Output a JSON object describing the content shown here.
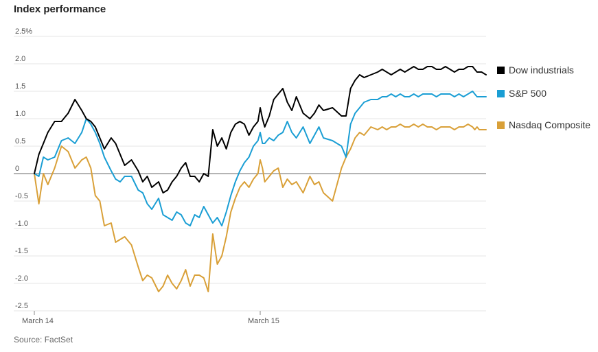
{
  "title": "Index performance",
  "source": "Source: FactSet",
  "colors": {
    "dow": "#000000",
    "sp": "#1a9ed4",
    "nasdaq": "#d9a038",
    "grid": "#e6e6e6",
    "zero": "#888888"
  },
  "chart_data": {
    "type": "line",
    "title": "Index performance",
    "ylim": [
      -2.5,
      2.5
    ],
    "xlim": [
      0,
      1
    ],
    "y_ticks": [
      {
        "value": 2.5,
        "label": "2.5%"
      },
      {
        "value": 2.0,
        "label": "2.0"
      },
      {
        "value": 1.5,
        "label": "1.5"
      },
      {
        "value": 1.0,
        "label": "1.0"
      },
      {
        "value": 0.5,
        "label": "0.5"
      },
      {
        "value": 0,
        "label": "0"
      },
      {
        "value": -0.5,
        "label": "-0.5"
      },
      {
        "value": -1.0,
        "label": "-1.0"
      },
      {
        "value": -1.5,
        "label": "-1.5"
      },
      {
        "value": -2.0,
        "label": "-2.0"
      },
      {
        "value": -2.5,
        "label": "-2.5"
      }
    ],
    "x_ticks": [
      {
        "value": 0,
        "label": "March 14"
      },
      {
        "value": 0.5,
        "label": "March 15"
      }
    ],
    "legend": "right",
    "grid": true,
    "series": [
      {
        "name": "Dow industrials",
        "color": "#000000",
        "x": [
          0,
          0.01,
          0.02,
          0.03,
          0.045,
          0.06,
          0.075,
          0.09,
          0.105,
          0.115,
          0.125,
          0.135,
          0.145,
          0.155,
          0.17,
          0.18,
          0.19,
          0.2,
          0.215,
          0.23,
          0.24,
          0.25,
          0.26,
          0.275,
          0.285,
          0.295,
          0.305,
          0.315,
          0.325,
          0.335,
          0.345,
          0.355,
          0.365,
          0.375,
          0.385,
          0.395,
          0.405,
          0.415,
          0.425,
          0.435,
          0.445,
          0.455,
          0.465,
          0.475,
          0.485,
          0.495,
          0.5,
          0.505,
          0.51,
          0.52,
          0.53,
          0.54,
          0.55,
          0.56,
          0.57,
          0.58,
          0.595,
          0.61,
          0.62,
          0.63,
          0.64,
          0.66,
          0.68,
          0.69,
          0.7,
          0.71,
          0.72,
          0.73,
          0.745,
          0.76,
          0.77,
          0.78,
          0.79,
          0.8,
          0.81,
          0.82,
          0.83,
          0.84,
          0.85,
          0.86,
          0.87,
          0.88,
          0.89,
          0.9,
          0.91,
          0.92,
          0.93,
          0.94,
          0.95,
          0.96,
          0.97,
          0.975,
          0.98,
          0.985,
          0.99,
          1.0
        ],
        "y": [
          0.0,
          0.35,
          0.55,
          0.75,
          0.95,
          0.95,
          1.1,
          1.35,
          1.15,
          1.0,
          0.95,
          0.85,
          0.65,
          0.45,
          0.65,
          0.55,
          0.35,
          0.15,
          0.25,
          0.05,
          -0.15,
          -0.05,
          -0.25,
          -0.15,
          -0.35,
          -0.3,
          -0.15,
          -0.05,
          0.1,
          0.2,
          -0.05,
          -0.05,
          -0.15,
          0.0,
          -0.05,
          0.8,
          0.5,
          0.65,
          0.45,
          0.75,
          0.9,
          0.95,
          0.9,
          0.7,
          0.85,
          0.95,
          1.2,
          1.0,
          0.85,
          1.05,
          1.35,
          1.45,
          1.55,
          1.3,
          1.15,
          1.4,
          1.1,
          1.0,
          1.1,
          1.25,
          1.15,
          1.2,
          1.05,
          1.05,
          1.55,
          1.7,
          1.8,
          1.75,
          1.8,
          1.85,
          1.9,
          1.85,
          1.8,
          1.85,
          1.9,
          1.85,
          1.9,
          1.95,
          1.9,
          1.9,
          1.95,
          1.95,
          1.9,
          1.9,
          1.95,
          1.9,
          1.85,
          1.9,
          1.9,
          1.95,
          1.95,
          1.9,
          1.85,
          1.85,
          1.85,
          1.8
        ],
        "y_override": [
          0.0,
          0.35,
          0.55,
          0.75,
          0.95,
          0.95,
          1.1,
          1.35,
          1.15,
          1.0,
          0.95,
          0.85,
          0.65,
          0.45,
          0.65,
          0.55,
          0.35,
          0.15,
          0.25,
          0.05,
          -0.15,
          -0.05,
          -0.25,
          -0.15,
          -0.35,
          -0.3,
          -0.15,
          -0.05,
          0.1,
          0.2,
          -0.05,
          -0.05,
          -0.15,
          0.0,
          -0.05,
          0.8,
          0.5,
          0.65,
          0.45,
          0.75,
          0.9,
          0.95,
          0.9,
          0.7,
          0.85,
          0.95,
          1.2,
          1.0,
          0.85,
          1.05,
          1.35,
          1.45,
          1.55,
          1.3,
          1.15,
          1.4,
          1.1,
          1.0,
          1.1,
          1.25,
          1.15,
          1.2,
          1.05,
          1.05,
          1.55,
          1.7,
          1.8,
          1.75,
          1.8,
          1.85,
          1.9,
          1.85,
          1.8,
          1.85,
          1.9,
          1.85,
          1.9,
          1.95,
          1.9,
          1.9,
          1.95,
          1.95,
          1.9,
          1.9,
          1.95,
          1.9,
          1.85,
          1.9,
          1.9,
          1.95,
          1.95,
          1.9,
          1.85,
          1.85,
          1.85,
          1.8
        ]
      },
      {
        "name": "S&P 500",
        "color": "#1a9ed4",
        "x": [
          0,
          0.01,
          0.02,
          0.03,
          0.045,
          0.06,
          0.075,
          0.09,
          0.105,
          0.115,
          0.125,
          0.135,
          0.145,
          0.155,
          0.17,
          0.18,
          0.19,
          0.2,
          0.215,
          0.23,
          0.24,
          0.25,
          0.26,
          0.275,
          0.285,
          0.295,
          0.305,
          0.315,
          0.325,
          0.335,
          0.345,
          0.355,
          0.365,
          0.375,
          0.385,
          0.395,
          0.405,
          0.415,
          0.425,
          0.435,
          0.445,
          0.455,
          0.465,
          0.475,
          0.485,
          0.495,
          0.5,
          0.505,
          0.51,
          0.52,
          0.53,
          0.54,
          0.55,
          0.56,
          0.57,
          0.58,
          0.595,
          0.61,
          0.62,
          0.63,
          0.64,
          0.66,
          0.68,
          0.69,
          0.7,
          0.71,
          0.72,
          0.73,
          0.745,
          0.76,
          0.77,
          0.78,
          0.79,
          0.8,
          0.81,
          0.82,
          0.83,
          0.84,
          0.85,
          0.86,
          0.87,
          0.88,
          0.89,
          0.9,
          0.91,
          0.92,
          0.93,
          0.94,
          0.95,
          0.96,
          0.97,
          0.975,
          0.98,
          0.985,
          0.99,
          1.0
        ],
        "y": [
          0.0,
          -0.05,
          0.3,
          0.25,
          0.3,
          0.6,
          0.65,
          0.55,
          0.75,
          1.0,
          0.9,
          0.75,
          0.55,
          0.3,
          0.05,
          -0.1,
          -0.15,
          -0.05,
          -0.05,
          -0.3,
          -0.35,
          -0.55,
          -0.65,
          -0.45,
          -0.75,
          -0.8,
          -0.85,
          -0.7,
          -0.75,
          -0.9,
          -0.95,
          -0.75,
          -0.8,
          -0.6,
          -0.75,
          -0.9,
          -0.8,
          -0.95,
          -0.7,
          -0.4,
          -0.15,
          0.05,
          0.2,
          0.3,
          0.5,
          0.6,
          0.75,
          0.55,
          0.55,
          0.65,
          0.6,
          0.7,
          0.75,
          0.95,
          0.75,
          0.65,
          0.85,
          0.55,
          0.7,
          0.85,
          0.65,
          0.6,
          0.5,
          0.3,
          0.9,
          1.1,
          1.2,
          1.3,
          1.35,
          1.35,
          1.4,
          1.4,
          1.45,
          1.4,
          1.45,
          1.4,
          1.4,
          1.45,
          1.4,
          1.45,
          1.45,
          1.45,
          1.4,
          1.45,
          1.45,
          1.45,
          1.4,
          1.45,
          1.4,
          1.45,
          1.5,
          1.45,
          1.4,
          1.4,
          1.4,
          1.4
        ],
        "y_override": null
      },
      {
        "name": "Nasdaq Composite",
        "color": "#d9a038",
        "x": [
          0,
          0.01,
          0.02,
          0.03,
          0.045,
          0.06,
          0.075,
          0.09,
          0.105,
          0.115,
          0.125,
          0.135,
          0.145,
          0.155,
          0.17,
          0.18,
          0.19,
          0.2,
          0.215,
          0.23,
          0.24,
          0.25,
          0.26,
          0.275,
          0.285,
          0.295,
          0.305,
          0.315,
          0.325,
          0.335,
          0.345,
          0.355,
          0.365,
          0.375,
          0.385,
          0.395,
          0.405,
          0.415,
          0.425,
          0.435,
          0.445,
          0.455,
          0.465,
          0.475,
          0.485,
          0.495,
          0.5,
          0.505,
          0.51,
          0.52,
          0.53,
          0.54,
          0.55,
          0.56,
          0.57,
          0.58,
          0.595,
          0.61,
          0.62,
          0.63,
          0.64,
          0.66,
          0.68,
          0.69,
          0.7,
          0.71,
          0.72,
          0.73,
          0.745,
          0.76,
          0.77,
          0.78,
          0.79,
          0.8,
          0.81,
          0.82,
          0.83,
          0.84,
          0.85,
          0.86,
          0.87,
          0.88,
          0.89,
          0.9,
          0.91,
          0.92,
          0.93,
          0.94,
          0.95,
          0.96,
          0.97,
          0.975,
          0.98,
          0.985,
          0.99,
          1.0
        ],
        "y": [
          0.0,
          -0.55,
          0.0,
          -0.2,
          0.1,
          0.5,
          0.4,
          0.1,
          0.25,
          0.3,
          0.1,
          -0.4,
          -0.5,
          -0.95,
          -0.9,
          -1.25,
          -1.2,
          -1.15,
          -1.3,
          -1.7,
          -1.95,
          -1.85,
          -1.9,
          -2.15,
          -2.05,
          -1.85,
          -2.0,
          -2.1,
          -1.95,
          -1.75,
          -2.05,
          -1.85,
          -1.85,
          -1.9,
          -2.15,
          -1.1,
          -1.65,
          -1.5,
          -1.15,
          -0.7,
          -0.45,
          -0.25,
          -0.15,
          -0.25,
          -0.1,
          0.0,
          0.25,
          0.1,
          -0.15,
          -0.05,
          0.05,
          0.1,
          -0.25,
          -0.1,
          -0.2,
          -0.15,
          -0.35,
          -0.05,
          -0.2,
          -0.15,
          -0.35,
          -0.5,
          0.1,
          0.3,
          0.45,
          0.65,
          0.75,
          0.7,
          0.85,
          0.8,
          0.85,
          0.8,
          0.85,
          0.85,
          0.9,
          0.85,
          0.85,
          0.9,
          0.85,
          0.9,
          0.85,
          0.85,
          0.8,
          0.85,
          0.85,
          0.85,
          0.8,
          0.85,
          0.85,
          0.9,
          0.85,
          0.8,
          0.85,
          0.8,
          0.8,
          0.8
        ],
        "y_override": null
      }
    ]
  }
}
